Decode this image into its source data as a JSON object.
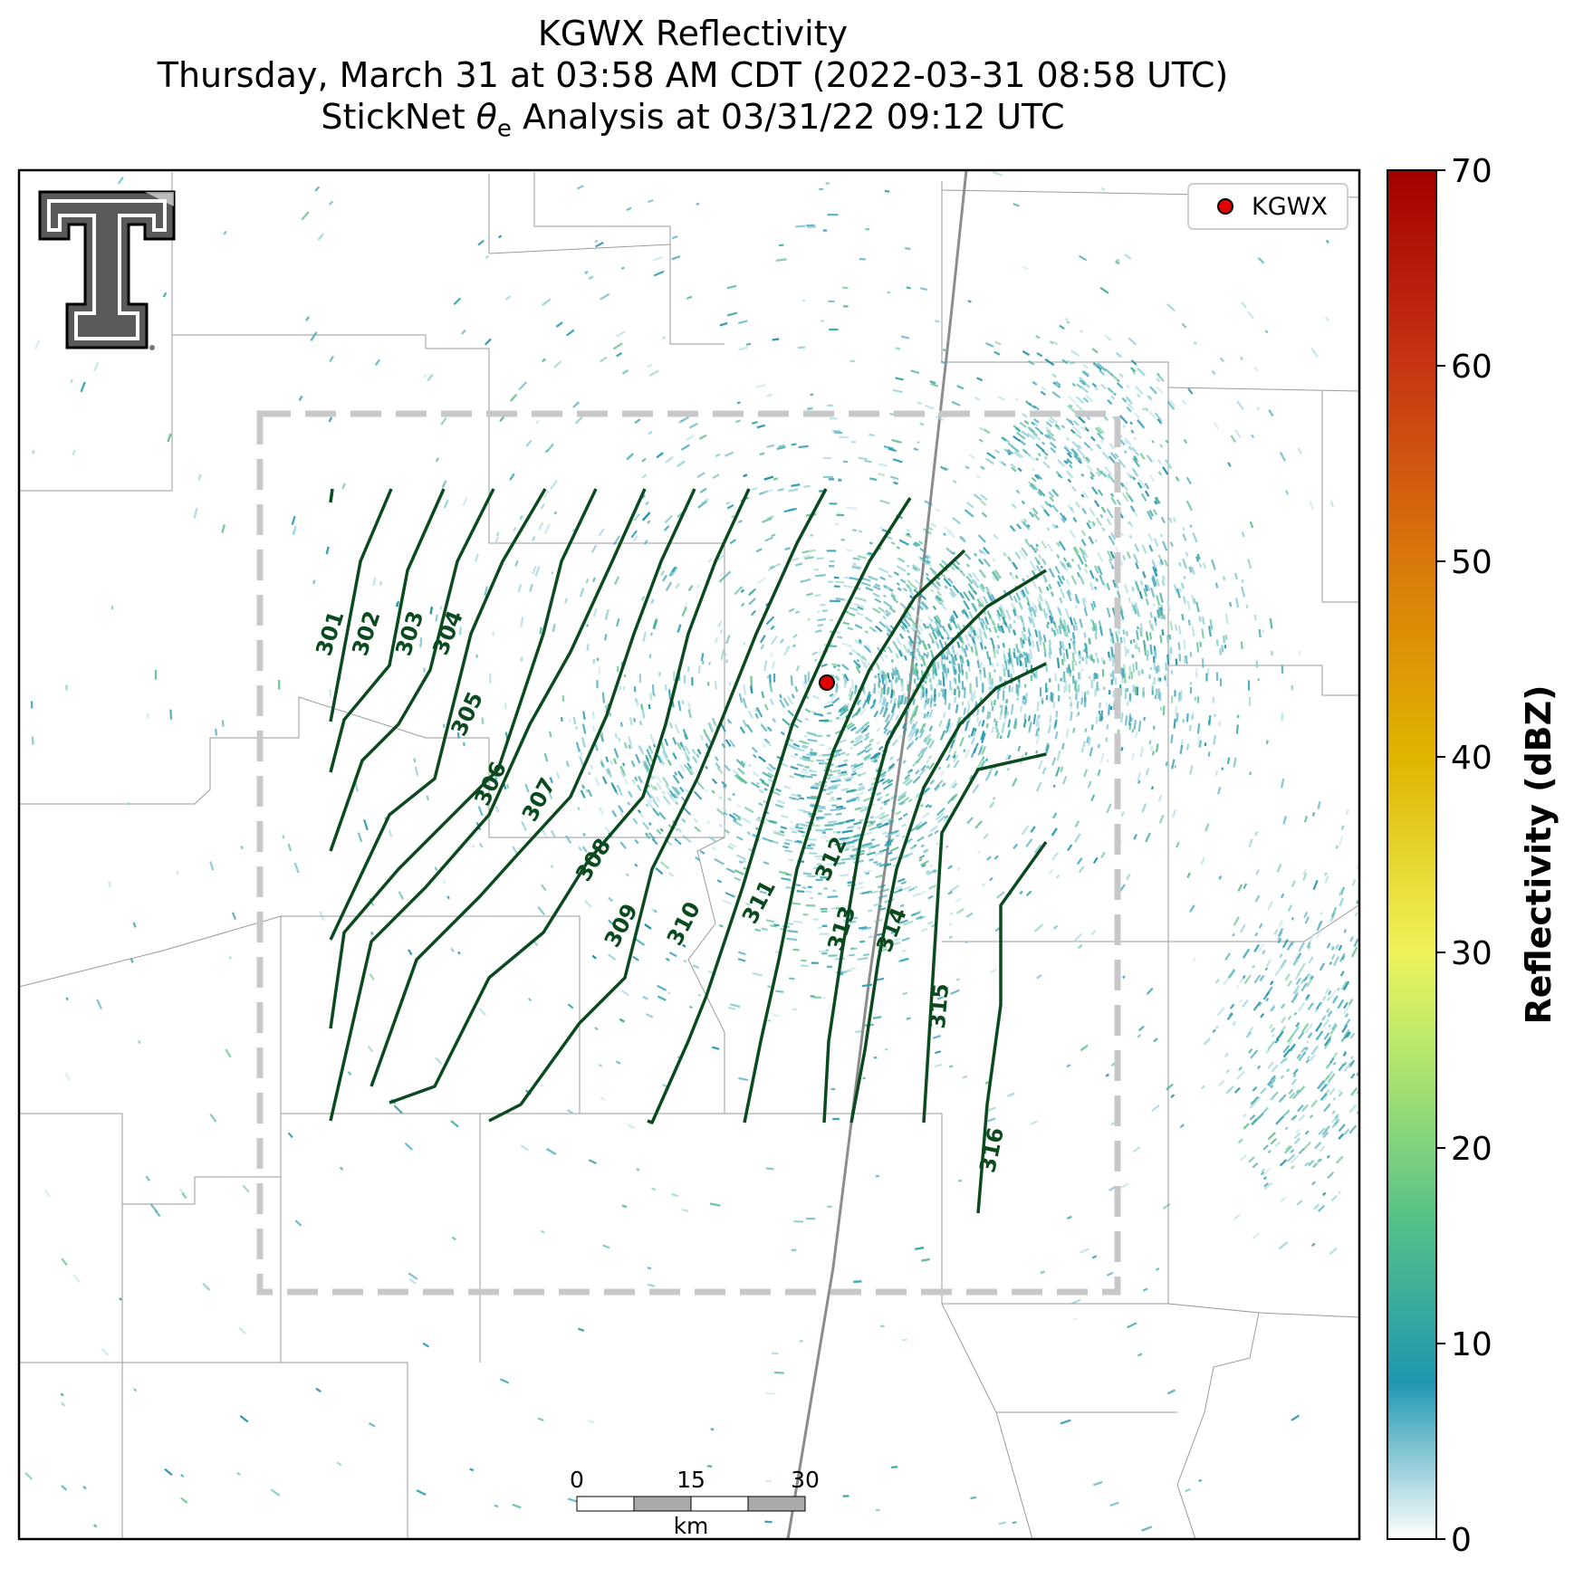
{
  "title": {
    "line1": "KGWX Reflectivity",
    "line2": "Thursday, March 31 at 03:58 AM CDT (2022-03-31 08:58 UTC)",
    "line3_prefix": "StickNet ",
    "line3_theta": "θ",
    "line3_sub": "e",
    "line3_suffix": " Analysis at 03/31/22 09:12 UTC"
  },
  "legend": {
    "label": "KGWX",
    "marker_color": "#e00000"
  },
  "colorbar": {
    "title": "Reflectivity (dBZ)",
    "ticks": [
      "0",
      "10",
      "20",
      "30",
      "40",
      "50",
      "60",
      "70"
    ],
    "range": [
      0,
      70
    ],
    "stops": [
      {
        "v": 0,
        "c": "#ffffff"
      },
      {
        "v": 8,
        "c": "#1f97b0"
      },
      {
        "v": 16,
        "c": "#52bf8a"
      },
      {
        "v": 25,
        "c": "#b7e86c"
      },
      {
        "v": 30,
        "c": "#eef35a"
      },
      {
        "v": 40,
        "c": "#e0b400"
      },
      {
        "v": 50,
        "c": "#d9780a"
      },
      {
        "v": 60,
        "c": "#c83514"
      },
      {
        "v": 70,
        "c": "#a30000"
      }
    ]
  },
  "scalebar": {
    "ticks": [
      "0",
      "15",
      "30"
    ],
    "unit": "km"
  },
  "contour_labels": [
    "301",
    "302",
    "303",
    "304",
    "305",
    "306",
    "307",
    "308",
    "309",
    "310",
    "311",
    "312",
    "313",
    "314",
    "315",
    "316"
  ],
  "colors": {
    "contour": "#0b4a1f",
    "analysis_box": "#c8c8c8",
    "radar_echo": "#2a9bb5",
    "boundary": "#9a9a9a"
  }
}
